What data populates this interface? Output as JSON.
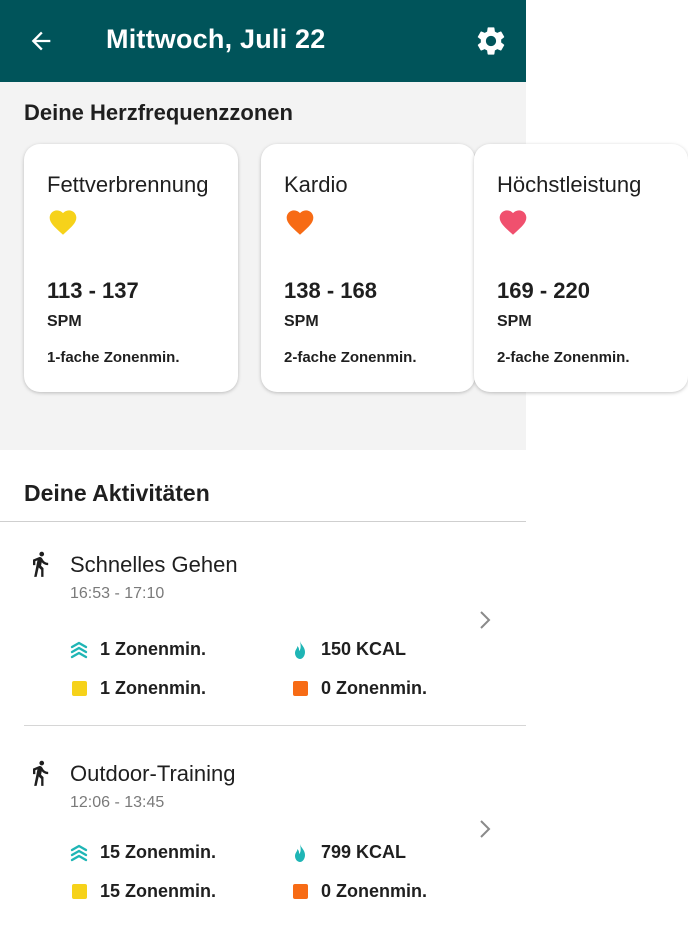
{
  "header": {
    "title": "Mittwoch, Juli 22",
    "bg_color": "#00545a",
    "back_icon": "arrow-back-icon",
    "settings_icon": "gear-icon"
  },
  "zones": {
    "heading": "Deine Herzfrequenzzonen",
    "cards": [
      {
        "name": "Fettverbrennung",
        "heart_color": "#f6d21a",
        "range": "113 - 137",
        "unit": "SPM",
        "multiplier": "1-fache Zonenmin."
      },
      {
        "name": "Kardio",
        "heart_color": "#f76b15",
        "range": "138 - 168",
        "unit": "SPM",
        "multiplier": "2-fache Zonenmin."
      },
      {
        "name": "Höchstleistung",
        "heart_color": "#f0506e",
        "range": "169 - 220",
        "unit": "SPM",
        "multiplier": "2-fache Zonenmin."
      }
    ]
  },
  "activities": {
    "heading": "Deine Aktivitäten",
    "items": [
      {
        "name": "Schnelles Gehen",
        "time": "16:53 - 17:10",
        "zone_minutes": "1 Zonenmin.",
        "calories": "150 KCAL",
        "fatburn_minutes": "1 Zonenmin.",
        "cardio_minutes": "0 Zonenmin."
      },
      {
        "name": "Outdoor-Training",
        "time": "12:06 - 13:45",
        "zone_minutes": "15 Zonenmin.",
        "calories": "799 KCAL",
        "fatburn_minutes": "15 Zonenmin.",
        "cardio_minutes": "0 Zonenmin."
      }
    ]
  },
  "colors": {
    "teal_accent": "#1fb5b5",
    "fatburn": "#f6d21a",
    "cardio": "#f76b15"
  }
}
